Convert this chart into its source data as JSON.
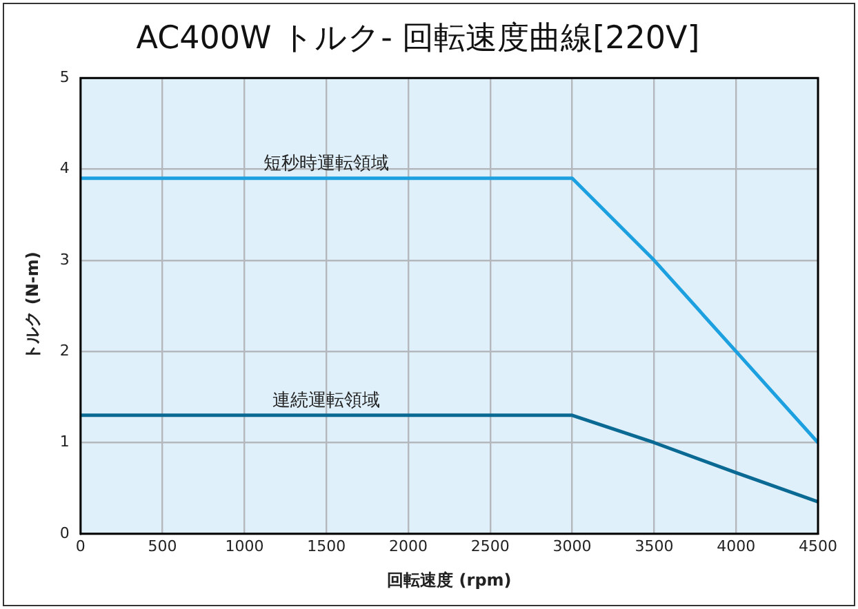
{
  "chart_data": {
    "type": "line",
    "title": "AC400W トルク- 回転速度曲線[220V]",
    "xlabel": "回転速度 (rpm)",
    "ylabel": "トルク (N-m)",
    "x": [
      0,
      3000,
      3500,
      4000,
      4500
    ],
    "series": [
      {
        "name": "短秒時運転領域",
        "color": "#1ca0e0",
        "values": [
          3.9,
          3.9,
          3.0,
          2.0,
          1.0
        ]
      },
      {
        "name": "連続運転領域",
        "color": "#0a6a94",
        "values": [
          1.3,
          1.3,
          1.0,
          0.67,
          0.35
        ]
      }
    ],
    "xlim": [
      0,
      4500
    ],
    "xticks": [
      0,
      500,
      1000,
      1500,
      2000,
      2500,
      3000,
      3500,
      4000,
      4500
    ],
    "ylim": [
      0,
      5
    ],
    "yticks": [
      0,
      1,
      2,
      3,
      4,
      5
    ],
    "grid": true,
    "legend": false,
    "marker": "none",
    "line_style": "solid"
  }
}
